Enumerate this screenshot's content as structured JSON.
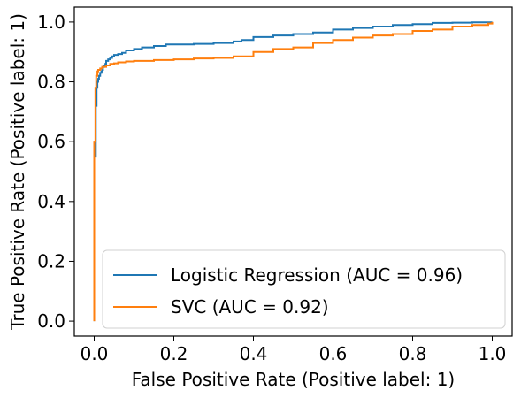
{
  "chart_data": {
    "type": "line",
    "title": "",
    "xlabel": "False Positive Rate (Positive label: 1)",
    "ylabel": "True Positive Rate (Positive label: 1)",
    "xlim": [
      -0.05,
      1.05
    ],
    "ylim": [
      -0.05,
      1.05
    ],
    "xticks": [
      "0.0",
      "0.2",
      "0.4",
      "0.6",
      "0.8",
      "1.0"
    ],
    "yticks": [
      "0.0",
      "0.2",
      "0.4",
      "0.6",
      "0.8",
      "1.0"
    ],
    "grid": false,
    "legend_position": "lower-right",
    "series": [
      {
        "name": "Logistic Regression (AUC = 0.96)",
        "color": "#1f77b4",
        "x": [
          0.0,
          0.0,
          0.004,
          0.006,
          0.008,
          0.01,
          0.012,
          0.015,
          0.018,
          0.02,
          0.022,
          0.025,
          0.028,
          0.03,
          0.035,
          0.04,
          0.045,
          0.05,
          0.06,
          0.07,
          0.08,
          0.1,
          0.12,
          0.15,
          0.18,
          0.2,
          0.25,
          0.3,
          0.35,
          0.37,
          0.4,
          0.45,
          0.5,
          0.55,
          0.6,
          0.65,
          0.7,
          0.75,
          0.8,
          0.85,
          0.9,
          0.95,
          1.0
        ],
        "y": [
          0.0,
          0.55,
          0.72,
          0.78,
          0.8,
          0.81,
          0.82,
          0.83,
          0.835,
          0.84,
          0.85,
          0.855,
          0.86,
          0.87,
          0.875,
          0.88,
          0.885,
          0.89,
          0.893,
          0.897,
          0.905,
          0.91,
          0.915,
          0.92,
          0.925,
          0.925,
          0.927,
          0.93,
          0.935,
          0.94,
          0.95,
          0.955,
          0.96,
          0.965,
          0.975,
          0.98,
          0.985,
          0.99,
          0.993,
          0.997,
          0.998,
          0.999,
          1.0
        ]
      },
      {
        "name": "SVC (AUC = 0.92)",
        "color": "#ff7f0e",
        "x": [
          0.0,
          0.0,
          0.003,
          0.005,
          0.008,
          0.01,
          0.015,
          0.02,
          0.03,
          0.04,
          0.05,
          0.06,
          0.08,
          0.1,
          0.15,
          0.2,
          0.25,
          0.3,
          0.35,
          0.4,
          0.45,
          0.5,
          0.55,
          0.6,
          0.65,
          0.7,
          0.75,
          0.8,
          0.85,
          0.9,
          0.95,
          0.99,
          1.0
        ],
        "y": [
          0.0,
          0.6,
          0.78,
          0.82,
          0.835,
          0.84,
          0.845,
          0.85,
          0.855,
          0.86,
          0.862,
          0.865,
          0.868,
          0.87,
          0.873,
          0.875,
          0.878,
          0.88,
          0.885,
          0.9,
          0.91,
          0.915,
          0.93,
          0.94,
          0.948,
          0.955,
          0.96,
          0.97,
          0.975,
          0.985,
          0.99,
          0.995,
          1.0
        ]
      }
    ]
  }
}
